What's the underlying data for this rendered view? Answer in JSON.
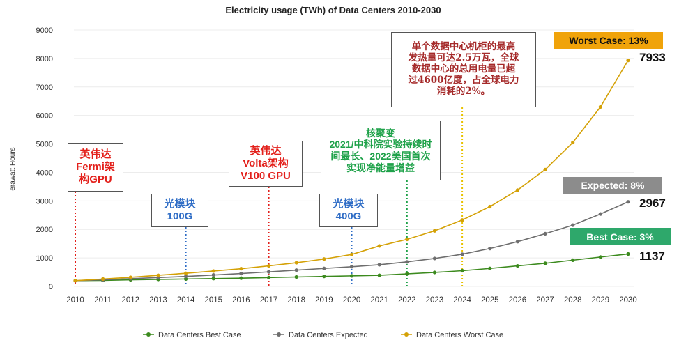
{
  "chart_data": {
    "type": "line",
    "title": "Electricity usage (TWh) of Data Centers 2010-2030",
    "ylabel": "Terawatt Hours",
    "xlabel": "",
    "ylim": [
      0,
      9000
    ],
    "yticks": [
      0,
      1000,
      2000,
      3000,
      4000,
      5000,
      6000,
      7000,
      8000,
      9000
    ],
    "x": [
      2010,
      2011,
      2012,
      2013,
      2014,
      2015,
      2016,
      2017,
      2018,
      2019,
      2020,
      2021,
      2022,
      2023,
      2024,
      2025,
      2026,
      2027,
      2028,
      2029,
      2030
    ],
    "series": [
      {
        "name": "Data Centers Best Case",
        "color": "#3c8a1e",
        "values": [
          200,
          210,
          230,
          245,
          260,
          275,
          290,
          310,
          330,
          350,
          370,
          390,
          440,
          490,
          550,
          630,
          720,
          810,
          920,
          1030,
          1137
        ]
      },
      {
        "name": "Data Centers Expected",
        "color": "#6e6e6e",
        "values": [
          200,
          230,
          270,
          310,
          350,
          400,
          450,
          510,
          570,
          630,
          690,
          760,
          860,
          980,
          1130,
          1330,
          1570,
          1850,
          2150,
          2540,
          2967
        ]
      },
      {
        "name": "Data Centers Worst Case",
        "color": "#d4a106",
        "values": [
          200,
          260,
          320,
          390,
          460,
          540,
          620,
          720,
          830,
          960,
          1120,
          1420,
          1650,
          1950,
          2330,
          2800,
          3380,
          4100,
          5050,
          6300,
          7933
        ]
      }
    ],
    "legend_position": "bottom",
    "end_labels": [
      {
        "series": "Worst Case",
        "value": "7933",
        "tag": "Worst Case: 13%",
        "tag_color": "#f0a30a"
      },
      {
        "series": "Expected",
        "value": "2967",
        "tag": "Expected: 8%",
        "tag_color": "#8c8c8c"
      },
      {
        "series": "Best Case",
        "value": "1137",
        "tag": "Best Case: 3%",
        "tag_color": "#2ea86b"
      }
    ],
    "annotations": [
      {
        "id": "fermi",
        "year": 2010,
        "line_color": "#e3201b",
        "lines": [
          "英伟达",
          "Fermi架",
          "构GPU"
        ]
      },
      {
        "id": "100g",
        "year": 2014,
        "line_color": "#2f6dc6",
        "lines": [
          "光模块",
          "100G"
        ]
      },
      {
        "id": "volta",
        "year": 2017,
        "line_color": "#e3201b",
        "lines": [
          "英伟达",
          "Volta架构",
          "V100 GPU"
        ]
      },
      {
        "id": "400g",
        "year": 2020,
        "line_color": "#2f6dc6",
        "lines": [
          "光模块",
          "400G"
        ]
      },
      {
        "id": "fusion",
        "year": 2022,
        "line_color": "#1fa24a",
        "lines": [
          "核聚变",
          "2021/中科院实验持续时",
          "间最长、2022美国首次",
          "实现净能量增益"
        ]
      },
      {
        "id": "cabinet",
        "year": 2024,
        "line_color": "#e8c200",
        "lines": [
          "单个数据中心机柜的最高",
          "发热量可达2.5万瓦，全球",
          "数据中心的总用电量已超",
          "过4600亿度，占全球电力",
          "消耗的2%。"
        ]
      }
    ]
  }
}
